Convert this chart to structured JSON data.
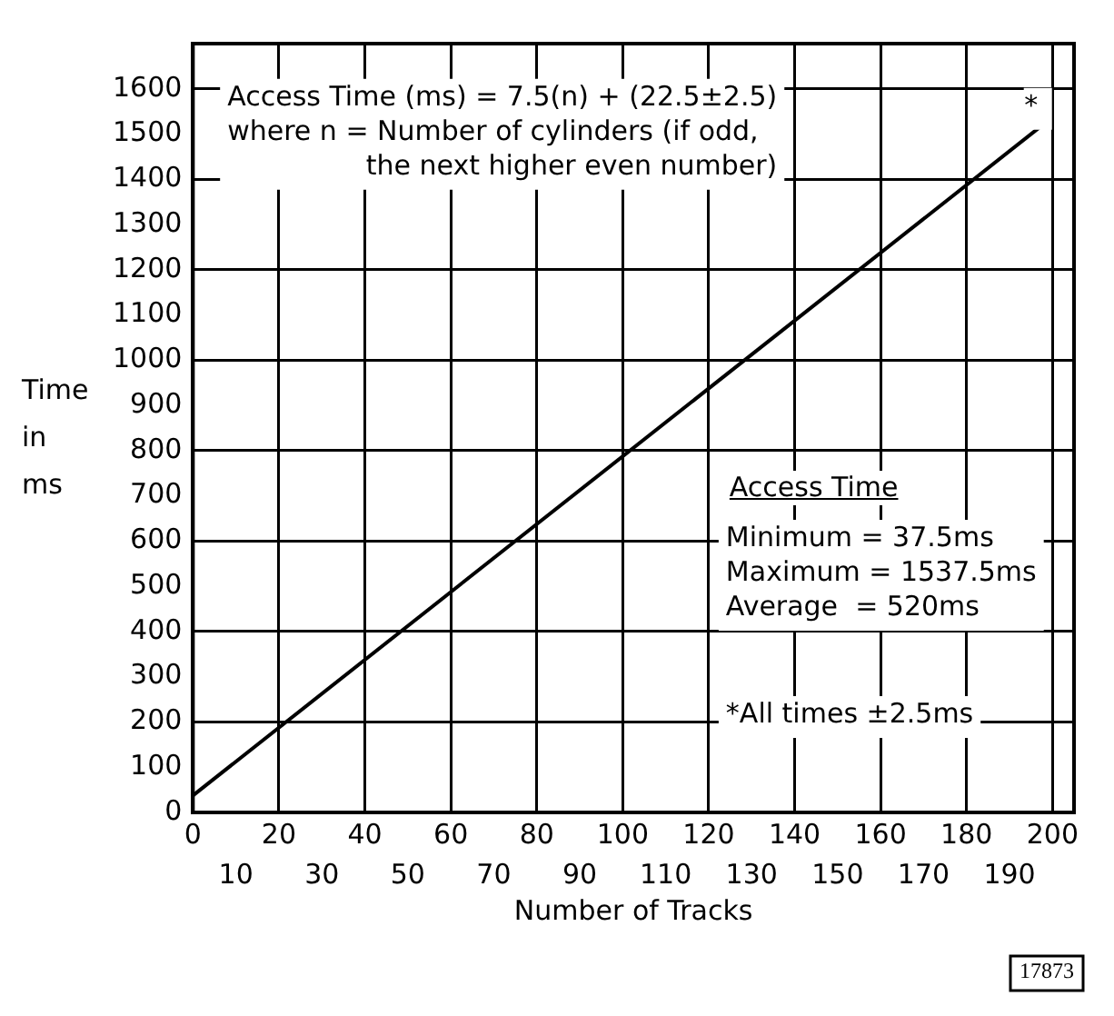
{
  "chart_data": {
    "type": "line",
    "xlabel": "Number of Tracks",
    "ylabel": "Time in ms",
    "series": [
      {
        "color": "#000000",
        "x": [
          0,
          200
        ],
        "values": [
          37.5,
          1537.5
        ]
      }
    ],
    "xlim": [
      0,
      205
    ],
    "xticks": [
      0,
      20,
      40,
      60,
      80,
      100,
      120,
      140,
      160,
      180,
      200
    ],
    "x2lim": [
      0,
      205
    ],
    "x2ticks": [
      10,
      30,
      50,
      70,
      90,
      110,
      130,
      150,
      170,
      190
    ],
    "ylim": [
      0,
      1700
    ],
    "yticks": [
      0,
      100,
      200,
      300,
      400,
      500,
      600,
      700,
      800,
      900,
      1000,
      1100,
      1200,
      1300,
      1400,
      1500,
      1600
    ],
    "grid": true,
    "legend": false,
    "marker": "none",
    "line_style": "solid",
    "annotations": [
      "Access Time (ms) = 7.5(n) + (22.5±2.5)\nwhere n = Number of cylinders (if odd,\nthe next higher even number)",
      "Access Time",
      "Minimum = 37.5ms\nMaximum = 1537.5ms\nAverage  = 520ms",
      "*All times ±2.5ms",
      "*",
      "17873"
    ]
  }
}
